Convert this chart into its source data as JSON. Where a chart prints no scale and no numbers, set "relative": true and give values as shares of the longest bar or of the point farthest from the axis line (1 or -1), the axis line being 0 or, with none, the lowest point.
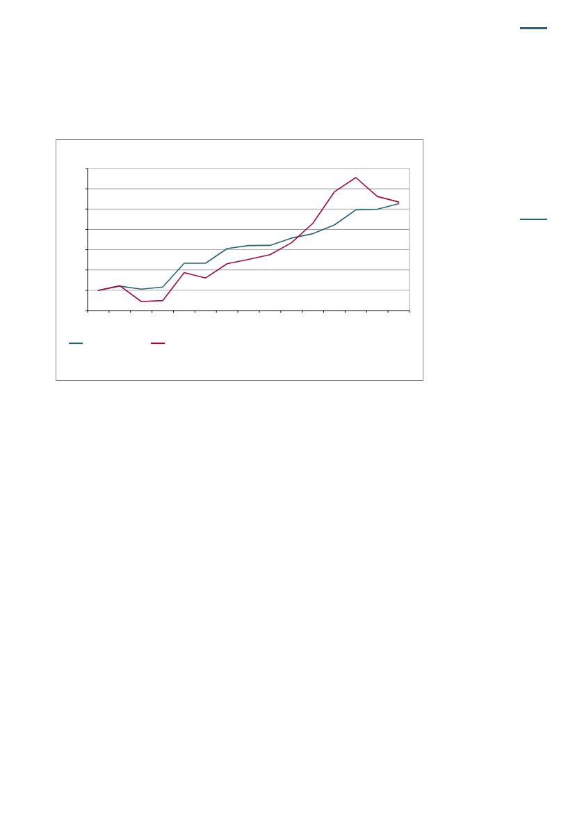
{
  "chart_data": {
    "type": "line",
    "relative": true,
    "grid": "y",
    "categories": [
      null,
      null,
      null,
      null,
      null,
      null,
      null,
      null,
      null,
      null,
      null,
      null,
      null,
      null,
      null
    ],
    "series": [
      {
        "color": "#2a6470",
        "values": [
          0.152,
          0.184,
          0.161,
          0.177,
          0.356,
          0.356,
          0.466,
          0.489,
          0.49,
          0.545,
          0.578,
          0.644,
          0.757,
          0.762,
          0.804
        ]
      },
      {
        "color": "#9e0b3a",
        "values": [
          0.152,
          0.187,
          0.068,
          0.075,
          0.285,
          0.245,
          0.352,
          0.385,
          0.42,
          0.51,
          0.657,
          0.893,
          1,
          0.858,
          0.816
        ]
      }
    ]
  }
}
